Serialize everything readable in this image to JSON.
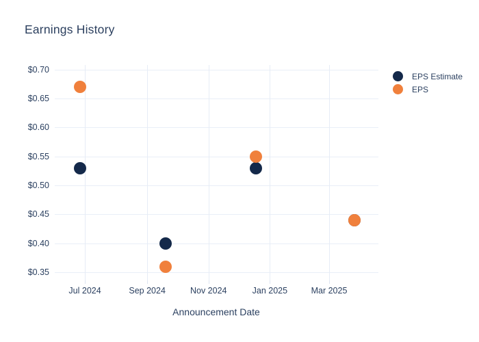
{
  "title": "Earnings History",
  "legend": [
    {
      "label": "EPS Estimate",
      "color": "#14294A"
    },
    {
      "label": "EPS",
      "color": "#F0803C"
    }
  ],
  "chart_data": {
    "type": "scatter",
    "title": "Earnings History",
    "xlabel": "Announcement Date",
    "ylabel": "",
    "grid": true,
    "legend_position": "top-right",
    "x_range": [
      "2024-06-01",
      "2025-04-19"
    ],
    "y_range": [
      0.336,
      0.708
    ],
    "x_ticks": [
      {
        "label": "Jul 2024",
        "date": "2024-07-01"
      },
      {
        "label": "Sep 2024",
        "date": "2024-09-01"
      },
      {
        "label": "Nov 2024",
        "date": "2024-11-01"
      },
      {
        "label": "Jan 2025",
        "date": "2025-01-01"
      },
      {
        "label": "Mar 2025",
        "date": "2025-03-01"
      }
    ],
    "y_ticks": [
      {
        "label": "$0.35",
        "value": 0.35
      },
      {
        "label": "$0.40",
        "value": 0.4
      },
      {
        "label": "$0.45",
        "value": 0.45
      },
      {
        "label": "$0.50",
        "value": 0.5
      },
      {
        "label": "$0.55",
        "value": 0.55
      },
      {
        "label": "$0.60",
        "value": 0.6
      },
      {
        "label": "$0.65",
        "value": 0.65
      },
      {
        "label": "$0.70",
        "value": 0.7
      }
    ],
    "series": [
      {
        "name": "EPS Estimate",
        "color": "#14294A",
        "points": [
          {
            "date": "2024-06-26",
            "value": 0.53
          },
          {
            "date": "2024-09-19",
            "value": 0.4
          },
          {
            "date": "2024-12-18",
            "value": 0.53
          },
          {
            "date": "2025-03-26",
            "value": 0.44
          }
        ]
      },
      {
        "name": "EPS",
        "color": "#F0803C",
        "points": [
          {
            "date": "2024-06-26",
            "value": 0.67
          },
          {
            "date": "2024-09-19",
            "value": 0.36
          },
          {
            "date": "2024-12-18",
            "value": 0.55
          },
          {
            "date": "2025-03-26",
            "value": 0.44
          }
        ]
      }
    ]
  }
}
